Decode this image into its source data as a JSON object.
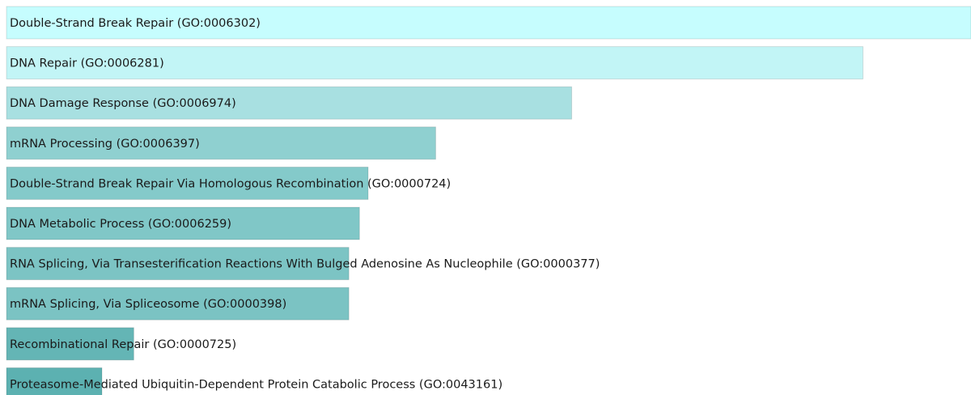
{
  "chart_data": {
    "type": "hbar",
    "categories": [
      "Double-Strand Break Repair (GO:0006302)",
      "DNA Repair (GO:0006281)",
      "DNA Damage Response (GO:0006974)",
      "mRNA Processing (GO:0006397)",
      "Double-Strand Break Repair Via Homologous Recombination (GO:0000724)",
      "DNA Metabolic Process (GO:0006259)",
      "RNA Splicing, Via Transesterification Reactions With Bulged Adenosine As Nucleophile (GO:0000377)",
      "mRNA Splicing, Via Spliceosome (GO:0000398)",
      "Recombinational Repair (GO:0000725)",
      "Proteasome-Mediated Ubiquitin-Dependent Protein Catabolic Process (GO:0043161)"
    ],
    "values": [
      100,
      88.8,
      58.6,
      44.5,
      37.5,
      36.6,
      35.5,
      35.5,
      13.2,
      9.9
    ],
    "colors": [
      "#c6fdfe",
      "#c2f5f6",
      "#a8e0e1",
      "#8fd0d0",
      "#84caca",
      "#80c7c7",
      "#7cc4c4",
      "#7bc3c3",
      "#64b5b5",
      "#5cb1b1"
    ]
  }
}
